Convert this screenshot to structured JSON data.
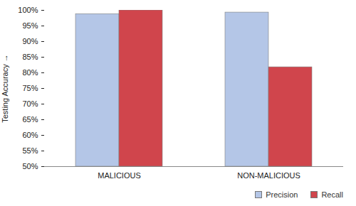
{
  "chart_data": {
    "type": "bar",
    "categories": [
      "MALICIOUS",
      "NON-MALICIOUS"
    ],
    "series": [
      {
        "name": "Precision",
        "color": "#b4c6e7",
        "values": [
          98.8,
          99.3
        ]
      },
      {
        "name": "Recall",
        "color": "#d0454c",
        "values": [
          100,
          81.8
        ]
      }
    ],
    "y_label": "Testing Accuracy",
    "ylim": [
      50,
      100
    ],
    "yticks": [
      {
        "value": 50,
        "label": "50%"
      },
      {
        "value": 55,
        "label": "55%"
      },
      {
        "value": 60,
        "label": "60%"
      },
      {
        "value": 65,
        "label": "65%"
      },
      {
        "value": 70,
        "label": "70%"
      },
      {
        "value": 75,
        "label": "75%"
      },
      {
        "value": 80,
        "label": "80%"
      },
      {
        "value": 85,
        "label": "85%"
      },
      {
        "value": 90,
        "label": "90%"
      },
      {
        "value": 95,
        "label": "95%"
      },
      {
        "value": 100,
        "label": "100%"
      }
    ],
    "grid": false,
    "legend": "bottom-right"
  }
}
